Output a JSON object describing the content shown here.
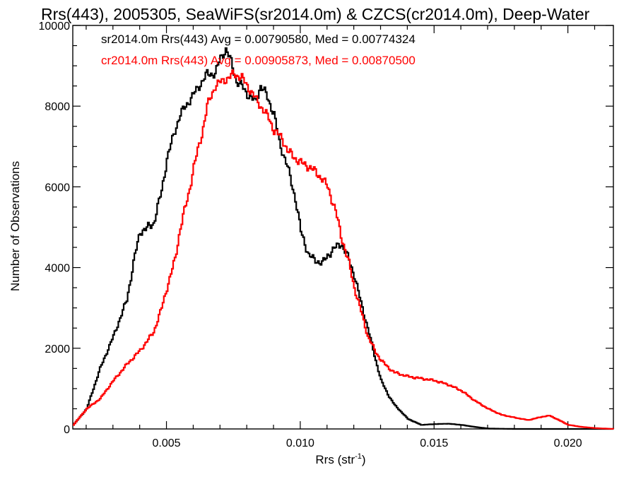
{
  "chart_data": {
    "type": "line",
    "title": "Rrs(443), 2005305, SeaWiFS(sr2014.0m) & CZCS(cr2014.0m), Deep-Water",
    "xlabel": "Rrs (str",
    "xlabel_sup": "-1",
    "xlabel_end": ")",
    "ylabel": "Number of Observations",
    "xlim": [
      0.0015,
      0.0217
    ],
    "ylim": [
      0,
      10000
    ],
    "x_ticks": [
      0.005,
      0.01,
      0.015,
      0.02
    ],
    "x_tick_labels": [
      "0.005",
      "0.010",
      "0.015",
      "0.020"
    ],
    "y_ticks": [
      0,
      2000,
      4000,
      6000,
      8000,
      10000
    ],
    "y_tick_labels": [
      "0",
      "2000",
      "4000",
      "6000",
      "8000",
      "10000"
    ],
    "grid": false,
    "legend_position": "top-left",
    "series": [
      {
        "name": "sr2014.0m Rrs(443) Avg = 0.00790580, Med = 0.00774324",
        "color": "#000000",
        "x": [
          0.0015,
          0.002,
          0.0025,
          0.003,
          0.0035,
          0.0038,
          0.004,
          0.0042,
          0.0045,
          0.0048,
          0.005,
          0.0053,
          0.0055,
          0.0058,
          0.006,
          0.0063,
          0.0065,
          0.0068,
          0.007,
          0.0072,
          0.0074,
          0.0076,
          0.0078,
          0.008,
          0.0083,
          0.0085,
          0.0087,
          0.009,
          0.0092,
          0.0095,
          0.0098,
          0.01,
          0.0103,
          0.0105,
          0.0108,
          0.011,
          0.0113,
          0.0115,
          0.0118,
          0.012,
          0.0123,
          0.0125,
          0.0128,
          0.013,
          0.0133,
          0.0135,
          0.014,
          0.0145,
          0.015,
          0.0155,
          0.016,
          0.0165,
          0.017,
          0.018,
          0.019,
          0.02,
          0.021,
          0.0217
        ],
        "y": [
          100,
          500,
          1500,
          2300,
          3200,
          4300,
          4900,
          4950,
          5100,
          5900,
          6700,
          7400,
          7800,
          8100,
          8300,
          8600,
          8800,
          8800,
          9200,
          9400,
          9100,
          8600,
          8500,
          8300,
          8100,
          8500,
          8300,
          7800,
          7100,
          6500,
          5700,
          4900,
          4300,
          4200,
          4100,
          4300,
          4500,
          4600,
          4200,
          3800,
          3000,
          2500,
          1700,
          1200,
          800,
          600,
          250,
          100,
          120,
          130,
          100,
          50,
          10,
          0,
          0,
          0,
          0,
          0
        ]
      },
      {
        "name": "cr2014.0m Rrs(443) Avg = 0.00905873, Med = 0.00870500",
        "color": "#ff0000",
        "x": [
          0.0015,
          0.002,
          0.0025,
          0.003,
          0.0035,
          0.004,
          0.0045,
          0.0048,
          0.005,
          0.0053,
          0.0055,
          0.0058,
          0.006,
          0.0063,
          0.0065,
          0.0068,
          0.007,
          0.0073,
          0.0075,
          0.0078,
          0.008,
          0.0083,
          0.0085,
          0.0088,
          0.009,
          0.0093,
          0.0095,
          0.0098,
          0.01,
          0.0103,
          0.0105,
          0.0108,
          0.011,
          0.0113,
          0.0115,
          0.0118,
          0.012,
          0.0123,
          0.0125,
          0.0128,
          0.013,
          0.0133,
          0.0135,
          0.014,
          0.0145,
          0.015,
          0.0155,
          0.016,
          0.0165,
          0.017,
          0.0175,
          0.018,
          0.0185,
          0.019,
          0.0193,
          0.0197,
          0.02,
          0.0205,
          0.021,
          0.0217
        ],
        "y": [
          100,
          500,
          750,
          1200,
          1600,
          1950,
          2400,
          3000,
          3500,
          4200,
          5000,
          5800,
          6500,
          7300,
          8000,
          8500,
          8600,
          8700,
          8800,
          8700,
          8500,
          8200,
          8000,
          7700,
          7400,
          7200,
          6900,
          6700,
          6600,
          6500,
          6400,
          6200,
          6000,
          5400,
          4800,
          4100,
          3500,
          2800,
          2300,
          1900,
          1700,
          1500,
          1400,
          1300,
          1250,
          1200,
          1100,
          950,
          700,
          500,
          350,
          280,
          220,
          300,
          330,
          200,
          100,
          50,
          20,
          0
        ]
      }
    ]
  }
}
